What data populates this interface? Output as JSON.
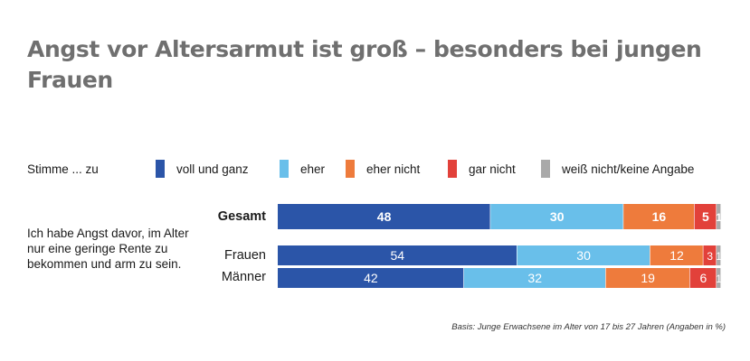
{
  "title": "Angst vor Altersarmut ist groß – besonders bei jungen Frauen",
  "legend": {
    "prefix": "Stimme ... zu",
    "items": [
      {
        "label": "voll und ganz",
        "color": "#2b55a8"
      },
      {
        "label": "eher",
        "color": "#69bfea"
      },
      {
        "label": "eher nicht",
        "color": "#ee7b3c"
      },
      {
        "label": "gar nicht",
        "color": "#e2413a"
      },
      {
        "label": "weiß nicht/keine Angabe",
        "color": "#a9a9a9"
      }
    ]
  },
  "statement": "Ich habe Angst davor, im Alter nur eine geringe Rente zu bekommen und arm zu sein.",
  "footnote": "Basis: Junge Erwachsene im Alter von 17 bis 27 Jahren (Angaben in %)",
  "chart_data": {
    "type": "bar",
    "orientation": "horizontal",
    "stacked": true,
    "categories": [
      "Gesamt",
      "Frauen",
      "Männer"
    ],
    "series": [
      {
        "name": "voll und ganz",
        "values": [
          48,
          54,
          42
        ]
      },
      {
        "name": "eher",
        "values": [
          30,
          30,
          32
        ]
      },
      {
        "name": "eher nicht",
        "values": [
          16,
          12,
          19
        ]
      },
      {
        "name": "gar nicht",
        "values": [
          5,
          3,
          6
        ]
      },
      {
        "name": "weiß nicht/keine Angabe",
        "values": [
          1,
          1,
          1
        ]
      }
    ],
    "xlim": [
      0,
      100
    ]
  }
}
